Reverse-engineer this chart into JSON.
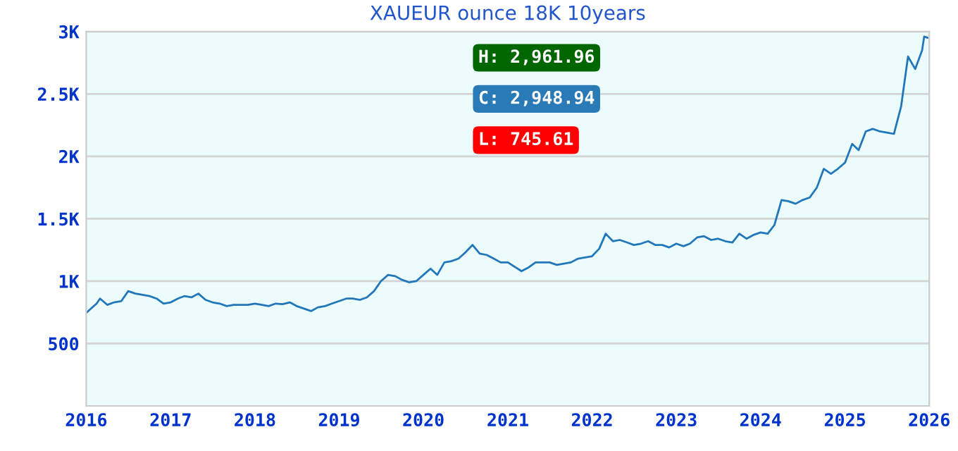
{
  "chart_data": {
    "type": "line",
    "title": "XAUEUR ounce 18K 10years",
    "annotations": [
      "H: 2,961.96",
      "C: 2,948.94",
      "L: 745.61"
    ],
    "x": [
      "2016-01-01",
      "2016-02-15",
      "2016-03",
      "2016-04",
      "2016-05",
      "2016-06",
      "2016-07",
      "2016-08",
      "2016-09",
      "2016-10",
      "2016-11",
      "2016-12",
      "2017-01",
      "2017-02",
      "2017-03",
      "2017-04",
      "2017-05",
      "2017-06",
      "2017-07",
      "2017-08",
      "2017-09",
      "2017-10",
      "2017-11",
      "2017-12",
      "2018-01",
      "2018-02",
      "2018-03",
      "2018-04",
      "2018-05",
      "2018-06",
      "2018-07",
      "2018-08",
      "2018-09",
      "2018-10",
      "2018-11",
      "2018-12",
      "2019-01",
      "2019-02",
      "2019-03",
      "2019-04",
      "2019-05",
      "2019-06",
      "2019-07",
      "2019-08",
      "2019-09",
      "2019-10",
      "2019-11",
      "2019-12",
      "2020-01",
      "2020-02",
      "2020-03",
      "2020-04",
      "2020-05",
      "2020-06",
      "2020-07",
      "2020-08",
      "2020-09",
      "2020-10",
      "2020-11",
      "2020-12",
      "2021-01",
      "2021-03",
      "2021-04",
      "2021-05",
      "2021-06",
      "2021-07",
      "2021-08",
      "2021-09",
      "2021-10",
      "2021-11",
      "2021-12",
      "2022-01",
      "2022-02",
      "2022-03",
      "2022-04",
      "2022-05",
      "2022-06",
      "2022-07",
      "2022-08",
      "2022-09",
      "2022-10",
      "2022-11",
      "2022-12",
      "2023-01",
      "2023-02",
      "2023-03",
      "2023-04",
      "2023-05",
      "2023-06",
      "2023-07",
      "2023-08",
      "2023-09",
      "2023-10",
      "2023-11",
      "2023-12",
      "2024-01",
      "2024-02",
      "2024-03",
      "2024-04",
      "2024-05",
      "2024-06",
      "2024-07",
      "2024-08",
      "2024-09",
      "2024-10",
      "2024-11",
      "2024-12",
      "2025-01",
      "2025-02",
      "2025-03",
      "2025-04",
      "2025-05",
      "2025-06",
      "2025-07",
      "2025-08",
      "2025-09",
      "2025-10",
      "2025-11",
      "2025-12-01",
      "2025-12-10",
      "2025-12-25"
    ],
    "series": [
      {
        "color": "#2277bb",
        "values": [
          745,
          820,
          860,
          810,
          830,
          840,
          920,
          900,
          890,
          880,
          860,
          820,
          830,
          860,
          880,
          870,
          900,
          850,
          830,
          820,
          800,
          810,
          810,
          810,
          820,
          810,
          800,
          820,
          815,
          830,
          800,
          780,
          760,
          790,
          800,
          820,
          840,
          860,
          860,
          850,
          870,
          920,
          1000,
          1050,
          1040,
          1010,
          990,
          1000,
          1050,
          1100,
          1050,
          1150,
          1160,
          1180,
          1230,
          1290,
          1220,
          1210,
          1180,
          1150,
          1150,
          1080,
          1110,
          1150,
          1150,
          1150,
          1130,
          1140,
          1150,
          1180,
          1190,
          1200,
          1260,
          1380,
          1320,
          1330,
          1310,
          1290,
          1300,
          1320,
          1290,
          1290,
          1270,
          1300,
          1280,
          1300,
          1350,
          1360,
          1330,
          1340,
          1320,
          1310,
          1380,
          1340,
          1370,
          1390,
          1380,
          1450,
          1650,
          1640,
          1620,
          1650,
          1670,
          1750,
          1900,
          1860,
          1900,
          1950,
          2100,
          2050,
          2200,
          2220,
          2200,
          2190,
          2180,
          2400,
          2800,
          2700,
          2850,
          2960,
          2950
        ]
      }
    ],
    "xlim": [
      "2016-01-01",
      "2026-01-01"
    ],
    "xticks": [
      {
        "value": "2016-01-01",
        "label": "2016"
      },
      {
        "value": "2017-01-01",
        "label": "2017"
      },
      {
        "value": "2018-01-01",
        "label": "2018"
      },
      {
        "value": "2019-01-01",
        "label": "2019"
      },
      {
        "value": "2020-01-01",
        "label": "2020"
      },
      {
        "value": "2021-01-01",
        "label": "2021"
      },
      {
        "value": "2022-01-01",
        "label": "2022"
      },
      {
        "value": "2023-01-01",
        "label": "2023"
      },
      {
        "value": "2024-01-01",
        "label": "2024"
      },
      {
        "value": "2025-01-01",
        "label": "2025"
      },
      {
        "value": "2026-01-01",
        "label": "2026"
      }
    ],
    "ylim": [
      0,
      3000
    ],
    "yticks": [
      {
        "value": 500,
        "label": "500"
      },
      {
        "value": 1000,
        "label": "1K"
      },
      {
        "value": 1500,
        "label": "1.5K"
      },
      {
        "value": 2000,
        "label": "2K"
      },
      {
        "value": 2500,
        "label": "2.5K"
      },
      {
        "value": 3000,
        "label": "3K"
      }
    ],
    "grid": "y",
    "legend": false
  }
}
